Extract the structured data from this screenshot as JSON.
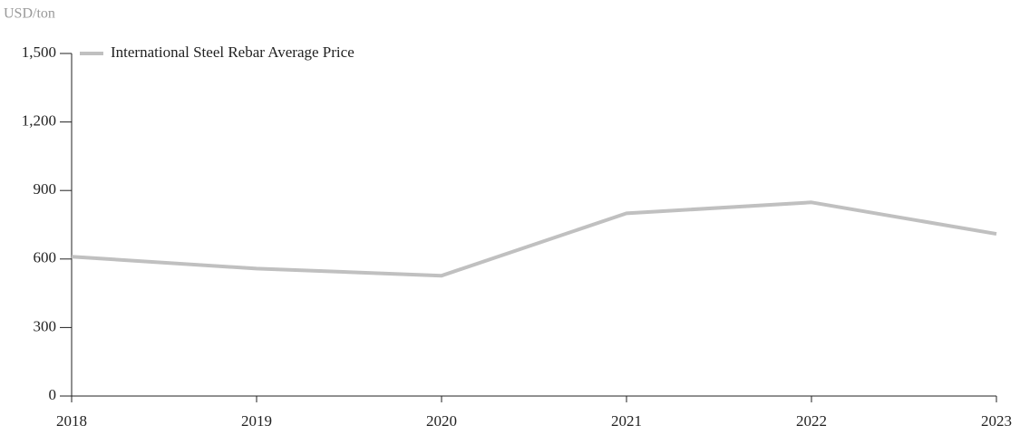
{
  "chart_data": {
    "type": "line",
    "y_axis_label": "USD/ton",
    "categories": [
      "2018",
      "2019",
      "2020",
      "2021",
      "2022",
      "2023"
    ],
    "series": [
      {
        "name": "International Steel Rebar Average Price",
        "color": "#c0c0c0",
        "values": [
          610,
          558,
          527,
          800,
          848,
          710
        ]
      }
    ],
    "ylim": [
      0,
      1500
    ],
    "yticks": [
      0,
      300,
      600,
      900,
      {
        "value": 1200,
        "label": "1,200"
      },
      {
        "value": 1500,
        "label": "1,500"
      }
    ],
    "grid": false,
    "legend": "top-left"
  }
}
